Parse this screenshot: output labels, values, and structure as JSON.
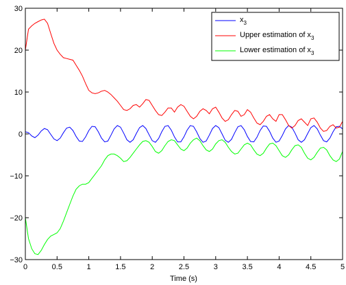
{
  "chart_data": {
    "type": "line",
    "title": "",
    "xlabel": "Time (s)",
    "ylabel": "",
    "xlim": [
      0,
      5
    ],
    "ylim": [
      -30,
      30
    ],
    "xticks": [
      0,
      0.5,
      1,
      1.5,
      2,
      2.5,
      3,
      3.5,
      4,
      4.5,
      5
    ],
    "xtick_labels": [
      "0",
      "0.5",
      "1",
      "1.5",
      "2",
      "2.5",
      "3",
      "3.5",
      "4",
      "4.5",
      "5"
    ],
    "yticks": [
      -30,
      -20,
      -10,
      0,
      10,
      20,
      30
    ],
    "ytick_labels": [
      "−30",
      "−20",
      "−10",
      "0",
      "10",
      "20",
      "30"
    ],
    "grid": false,
    "legend_position": "top-right",
    "series": [
      {
        "name_main": "x",
        "name_sub": "3",
        "color": "#0000ff",
        "x": [
          0,
          0.05,
          0.1,
          0.15,
          0.2,
          0.25,
          0.3,
          0.35,
          0.4,
          0.45,
          0.5,
          0.55,
          0.6,
          0.65,
          0.7,
          0.75,
          0.8,
          0.85,
          0.9,
          0.95,
          1.0,
          1.05,
          1.1,
          1.15,
          1.2,
          1.25,
          1.3,
          1.35,
          1.4,
          1.45,
          1.5,
          1.55,
          1.6,
          1.65,
          1.7,
          1.75,
          1.8,
          1.85,
          1.9,
          1.95,
          2.0,
          2.05,
          2.1,
          2.15,
          2.2,
          2.25,
          2.3,
          2.35,
          2.4,
          2.45,
          2.5,
          2.55,
          2.6,
          2.65,
          2.7,
          2.75,
          2.8,
          2.85,
          2.9,
          2.95,
          3.0,
          3.05,
          3.1,
          3.15,
          3.2,
          3.25,
          3.3,
          3.35,
          3.4,
          3.45,
          3.5,
          3.55,
          3.6,
          3.65,
          3.7,
          3.75,
          3.8,
          3.85,
          3.9,
          3.95,
          4.0,
          4.05,
          4.1,
          4.15,
          4.2,
          4.25,
          4.3,
          4.35,
          4.4,
          4.45,
          4.5,
          4.55,
          4.6,
          4.65,
          4.7,
          4.75,
          4.8,
          4.85,
          4.9,
          4.95,
          5.0
        ],
        "y": [
          0.5,
          0.3,
          -0.5,
          -0.9,
          -0.3,
          0.7,
          1.3,
          1.0,
          -0.1,
          -1.2,
          -1.6,
          -1.0,
          0.3,
          1.4,
          1.6,
          0.8,
          -0.6,
          -1.7,
          -1.8,
          -0.7,
          0.8,
          1.8,
          1.7,
          0.5,
          -1.0,
          -1.9,
          -1.7,
          -0.3,
          1.2,
          2.0,
          1.6,
          0.2,
          -1.4,
          -2.0,
          -1.4,
          0.1,
          1.5,
          2.0,
          1.3,
          -0.2,
          -1.6,
          -2.0,
          -1.1,
          0.5,
          1.8,
          2.0,
          0.9,
          -0.7,
          -1.9,
          -1.9,
          -0.7,
          0.9,
          2.0,
          1.8,
          0.5,
          -1.1,
          -2.0,
          -1.7,
          -0.3,
          1.3,
          2.0,
          1.5,
          0.0,
          -1.5,
          -2.0,
          -1.3,
          0.3,
          1.7,
          2.0,
          1.0,
          -0.6,
          -1.8,
          -1.9,
          -0.8,
          0.8,
          1.9,
          1.8,
          0.6,
          -1.0,
          -2.0,
          -1.7,
          -0.4,
          1.2,
          2.0,
          1.6,
          0.2,
          -1.4,
          -2.0,
          -1.4,
          0.1,
          1.5,
          2.0,
          1.2,
          -0.3,
          -1.6,
          -1.9,
          -1.0,
          0.5,
          1.7,
          1.8,
          1.2
        ]
      },
      {
        "name_main": "Upper estimation of x",
        "name_sub": "3",
        "color": "#ff0000",
        "x": [
          0,
          0.05,
          0.1,
          0.15,
          0.2,
          0.25,
          0.3,
          0.35,
          0.4,
          0.45,
          0.5,
          0.55,
          0.6,
          0.65,
          0.7,
          0.75,
          0.8,
          0.85,
          0.9,
          0.95,
          1.0,
          1.05,
          1.1,
          1.15,
          1.2,
          1.25,
          1.3,
          1.35,
          1.4,
          1.45,
          1.5,
          1.55,
          1.6,
          1.65,
          1.7,
          1.75,
          1.8,
          1.85,
          1.9,
          1.95,
          2.0,
          2.05,
          2.1,
          2.15,
          2.2,
          2.25,
          2.3,
          2.35,
          2.4,
          2.45,
          2.5,
          2.55,
          2.6,
          2.65,
          2.7,
          2.75,
          2.8,
          2.85,
          2.9,
          2.95,
          3.0,
          3.05,
          3.1,
          3.15,
          3.2,
          3.25,
          3.3,
          3.35,
          3.4,
          3.45,
          3.5,
          3.55,
          3.6,
          3.65,
          3.7,
          3.75,
          3.8,
          3.85,
          3.9,
          3.95,
          4.0,
          4.05,
          4.1,
          4.15,
          4.2,
          4.25,
          4.3,
          4.35,
          4.4,
          4.45,
          4.5,
          4.55,
          4.6,
          4.65,
          4.7,
          4.75,
          4.8,
          4.85,
          4.9,
          4.95,
          5.0
        ],
        "y": [
          20.0,
          25.0,
          25.8,
          26.4,
          26.8,
          27.2,
          27.4,
          26.4,
          24.0,
          21.6,
          20.0,
          19.0,
          18.2,
          18.0,
          17.8,
          17.6,
          16.4,
          15.2,
          13.8,
          12.0,
          10.4,
          9.8,
          9.6,
          9.8,
          10.2,
          10.4,
          10.0,
          9.4,
          8.6,
          7.8,
          6.8,
          5.8,
          5.6,
          6.0,
          6.8,
          7.0,
          6.4,
          7.2,
          8.2,
          8.0,
          6.8,
          5.6,
          4.6,
          4.4,
          5.2,
          6.2,
          6.2,
          5.2,
          6.4,
          7.0,
          6.6,
          5.4,
          4.2,
          3.6,
          4.2,
          5.4,
          6.0,
          5.6,
          4.8,
          6.0,
          6.4,
          5.2,
          3.8,
          3.0,
          3.4,
          4.6,
          5.6,
          5.4,
          4.2,
          4.6,
          5.8,
          5.2,
          3.8,
          2.6,
          2.2,
          3.0,
          4.2,
          4.6,
          3.6,
          3.0,
          4.6,
          4.6,
          3.4,
          2.0,
          1.4,
          2.0,
          3.2,
          3.6,
          2.8,
          2.0,
          3.6,
          3.8,
          2.8,
          1.4,
          0.6,
          0.8,
          1.8,
          2.2,
          1.4,
          1.6,
          3.0
        ]
      },
      {
        "name_main": "Lower estimation of x",
        "name_sub": "3",
        "color": "#00ff00",
        "x": [
          0,
          0.05,
          0.1,
          0.15,
          0.2,
          0.25,
          0.3,
          0.35,
          0.4,
          0.45,
          0.5,
          0.55,
          0.6,
          0.65,
          0.7,
          0.75,
          0.8,
          0.85,
          0.9,
          0.95,
          1.0,
          1.05,
          1.1,
          1.15,
          1.2,
          1.25,
          1.3,
          1.35,
          1.4,
          1.45,
          1.5,
          1.55,
          1.6,
          1.65,
          1.7,
          1.75,
          1.8,
          1.85,
          1.9,
          1.95,
          2.0,
          2.05,
          2.1,
          2.15,
          2.2,
          2.25,
          2.3,
          2.35,
          2.4,
          2.45,
          2.5,
          2.55,
          2.6,
          2.65,
          2.7,
          2.75,
          2.8,
          2.85,
          2.9,
          2.95,
          3.0,
          3.05,
          3.1,
          3.15,
          3.2,
          3.25,
          3.3,
          3.35,
          3.4,
          3.45,
          3.5,
          3.55,
          3.6,
          3.65,
          3.7,
          3.75,
          3.8,
          3.85,
          3.9,
          3.95,
          4.0,
          4.05,
          4.1,
          4.15,
          4.2,
          4.25,
          4.3,
          4.35,
          4.4,
          4.45,
          4.5,
          4.55,
          4.6,
          4.65,
          4.7,
          4.75,
          4.8,
          4.85,
          4.9,
          4.95,
          5.0
        ],
        "y": [
          -20.0,
          -25.0,
          -27.4,
          -28.6,
          -28.8,
          -27.8,
          -26.4,
          -25.2,
          -24.4,
          -24.0,
          -23.6,
          -22.6,
          -20.8,
          -18.8,
          -16.8,
          -14.8,
          -13.2,
          -12.4,
          -12.0,
          -12.0,
          -11.6,
          -10.6,
          -9.6,
          -8.6,
          -7.6,
          -6.2,
          -5.2,
          -4.8,
          -4.8,
          -5.2,
          -5.8,
          -6.6,
          -6.4,
          -5.6,
          -4.6,
          -3.6,
          -2.6,
          -1.8,
          -1.6,
          -2.0,
          -3.0,
          -4.2,
          -4.6,
          -4.0,
          -2.8,
          -1.8,
          -1.4,
          -1.6,
          -2.6,
          -3.6,
          -4.0,
          -3.4,
          -2.2,
          -1.4,
          -1.0,
          -1.6,
          -2.8,
          -3.8,
          -4.2,
          -3.6,
          -2.4,
          -1.6,
          -1.4,
          -2.0,
          -3.2,
          -4.2,
          -4.8,
          -4.6,
          -3.6,
          -2.6,
          -2.2,
          -2.6,
          -3.8,
          -4.8,
          -5.2,
          -4.6,
          -3.4,
          -2.4,
          -2.2,
          -2.8,
          -4.0,
          -5.2,
          -5.6,
          -5.0,
          -3.8,
          -2.8,
          -2.6,
          -3.2,
          -4.6,
          -5.8,
          -6.2,
          -5.6,
          -4.4,
          -3.4,
          -3.2,
          -3.8,
          -5.2,
          -6.2,
          -6.6,
          -6.0,
          -4.2
        ]
      }
    ]
  }
}
